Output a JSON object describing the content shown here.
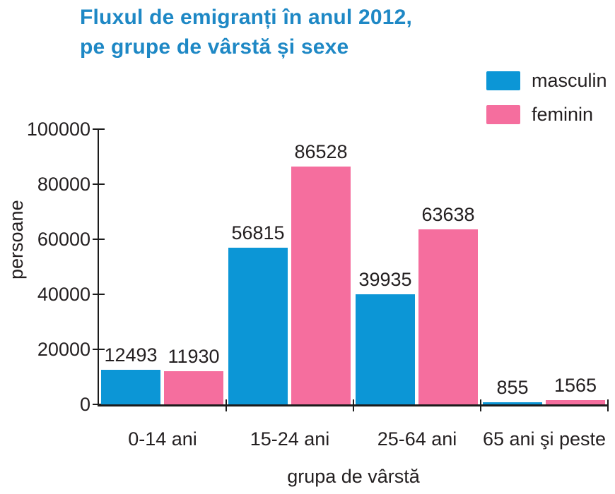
{
  "title": {
    "line1": "Fluxul de emigranți în anul 2012,",
    "line2": "pe grupe de vârstă și sexe",
    "color": "#1e88c5"
  },
  "chart_data": {
    "type": "bar",
    "title": "Fluxul de emigranți în anul 2012, pe grupe de vârstă și sexe",
    "categories": [
      "0-14 ani",
      "15-24 ani",
      "25-64 ani",
      "65 ani şi peste"
    ],
    "series": [
      {
        "name": "masculin",
        "color": "#0c96d6",
        "values": [
          12493,
          56815,
          39935,
          855
        ]
      },
      {
        "name": "feminin",
        "color": "#f56e9e",
        "values": [
          11930,
          86528,
          63638,
          1565
        ]
      }
    ],
    "xlabel": "grupa de vârstă",
    "ylabel": "persoane",
    "ylim": [
      0,
      100000
    ],
    "yticks": [
      0,
      20000,
      40000,
      60000,
      80000,
      100000
    ],
    "grid": false,
    "legend_position": "top-right",
    "value_labels": true,
    "axis_color": "#1c1c1c",
    "text_color": "#231f20"
  }
}
